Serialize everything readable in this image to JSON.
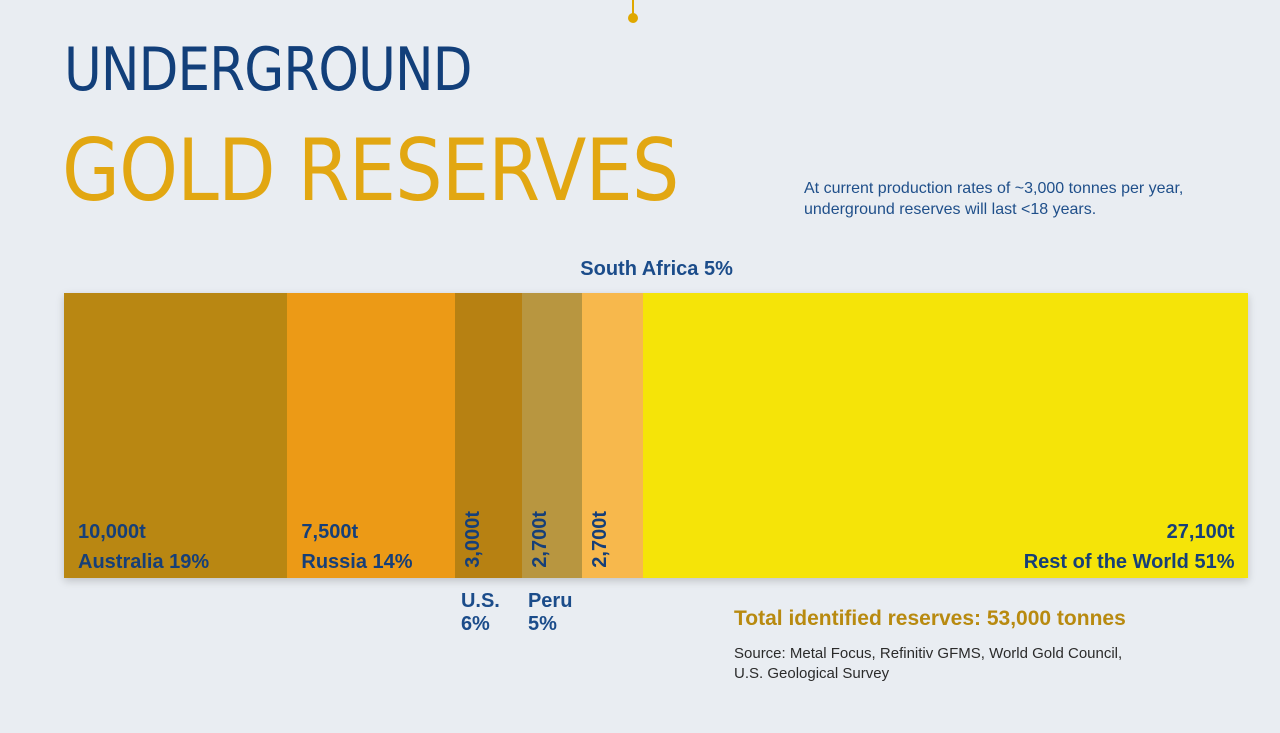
{
  "header": {
    "title_line1": "UNDERGROUND",
    "title_line2": "GOLD RESERVES",
    "subtitle": "At current production rates of ~3,000 tonnes per year, underground reserves will last <18 years."
  },
  "chart_data": {
    "type": "bar",
    "orientation": "horizontal-stacked-100",
    "title": "UNDERGROUND GOLD RESERVES",
    "unit": "tonnes",
    "categories": [
      "Australia",
      "Russia",
      "U.S.",
      "Peru",
      "South Africa",
      "Rest of the World"
    ],
    "values": [
      10000,
      7500,
      3000,
      2700,
      2700,
      27100
    ],
    "value_labels": [
      "10,000t",
      "7,500t",
      "3,000t",
      "2,700t",
      "2,700t",
      "27,100t"
    ],
    "percents": [
      19,
      14,
      6,
      5,
      5,
      51
    ],
    "name_labels": [
      "Australia 19%",
      "Russia 14%",
      "U.S.",
      "Peru",
      "South Africa 5%",
      "Rest of the World 51%"
    ],
    "outside_percent_labels": {
      "U.S.": "6%",
      "Peru": "5%"
    },
    "colors": [
      "#b98712",
      "#ec9a16",
      "#b78112",
      "#b89640",
      "#f7b84c",
      "#f5e408"
    ],
    "total_label": "Total identified reserves: 53,000 tonnes",
    "total": 53000,
    "source": "Source: Metal Focus, Refinitiv GFMS, World Gold Council, U.S. Geological Survey"
  }
}
